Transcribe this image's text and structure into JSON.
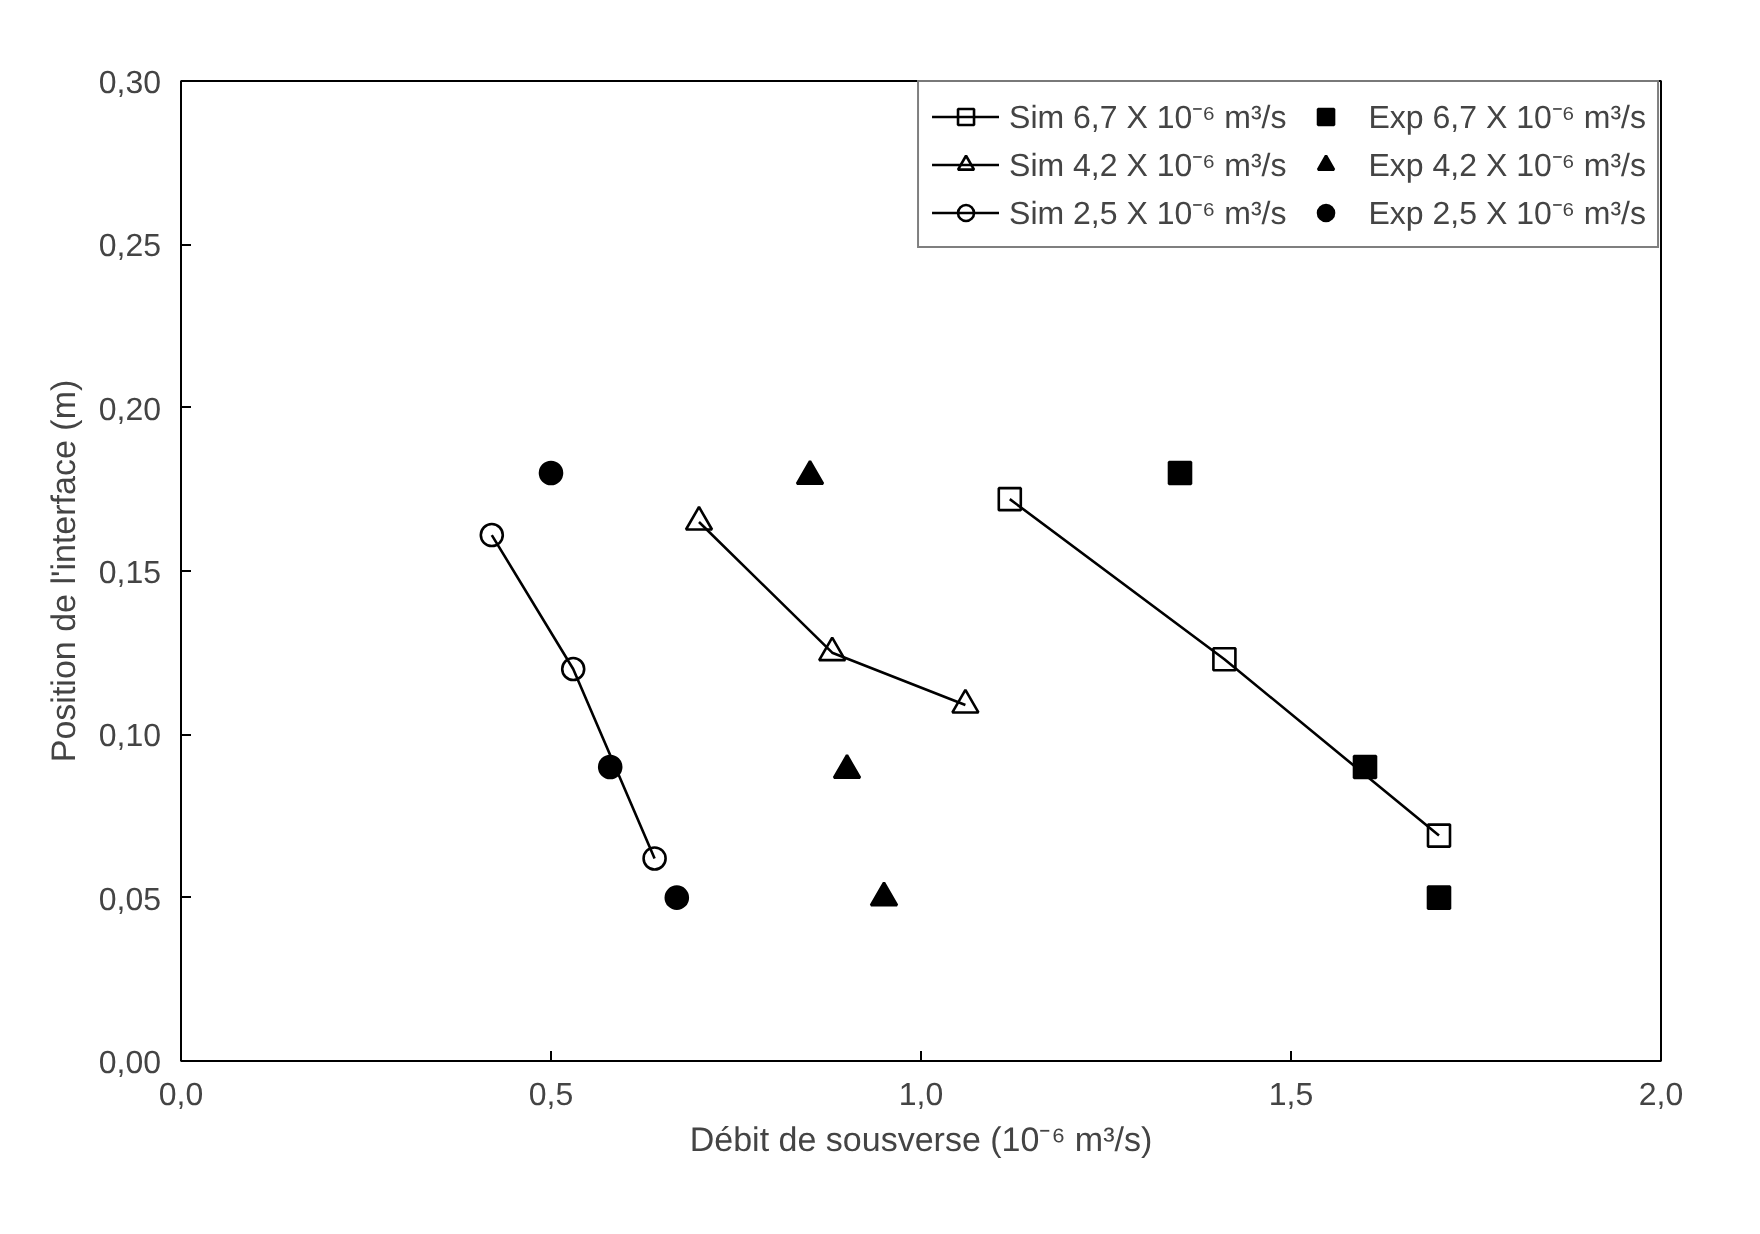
{
  "chart_data": {
    "type": "scatter",
    "xlabel": "Débit de sousverse (10⁻⁶ m³/s)",
    "ylabel": "Position de l'interface (m)",
    "xlim": [
      0,
      2
    ],
    "ylim": [
      0,
      0.3
    ],
    "xticks": [
      {
        "value": 0,
        "label": "0,0"
      },
      {
        "value": 0.5,
        "label": "0,5"
      },
      {
        "value": 1,
        "label": "1,0"
      },
      {
        "value": 1.5,
        "label": "1,5"
      },
      {
        "value": 2,
        "label": "2,0"
      }
    ],
    "yticks": [
      {
        "value": 0,
        "label": "0,00"
      },
      {
        "value": 0.05,
        "label": "0,05"
      },
      {
        "value": 0.1,
        "label": "0,10"
      },
      {
        "value": 0.15,
        "label": "0,15"
      },
      {
        "value": 0.2,
        "label": "0,20"
      },
      {
        "value": 0.25,
        "label": "0,25"
      },
      {
        "value": 0.3,
        "label": "0,30"
      }
    ],
    "grid": false,
    "legend": "top right",
    "series": [
      {
        "name": "Sim 6,7 X 10⁻⁶ m³/s",
        "type": "line",
        "marker": "square",
        "color": "#000000",
        "x": [
          1.12,
          1.41,
          1.7
        ],
        "values": [
          0.172,
          0.123,
          0.069
        ]
      },
      {
        "name": "Sim 4,2 X 10⁻⁶ m³/s",
        "type": "line",
        "marker": "triangle",
        "color": "#000000",
        "x": [
          0.7,
          0.88,
          1.06
        ],
        "values": [
          0.165,
          0.125,
          0.109
        ]
      },
      {
        "name": "Sim 2,5 X 10⁻⁶ m³/s",
        "type": "line",
        "marker": "circle",
        "color": "#000000",
        "x": [
          0.42,
          0.53,
          0.64
        ],
        "values": [
          0.161,
          0.12,
          0.062
        ]
      },
      {
        "name": "Exp 6,7 X 10⁻⁶ m³/s",
        "marker": "square",
        "color": "#000000",
        "x": [
          1.35,
          1.6,
          1.7
        ],
        "values": [
          0.18,
          0.09,
          0.05
        ]
      },
      {
        "name": "Exp 4,2 X 10⁻⁶ m³/s",
        "marker": "triangle",
        "color": "#000000",
        "x": [
          0.85,
          0.9,
          0.95
        ],
        "values": [
          0.179,
          0.089,
          0.05
        ]
      },
      {
        "name": "Exp 2,5 X 10⁻⁶ m³/s",
        "marker": "circle",
        "color": "#000000",
        "x": [
          0.5,
          0.58,
          0.67
        ],
        "values": [
          0.18,
          0.09,
          0.05
        ]
      }
    ]
  }
}
